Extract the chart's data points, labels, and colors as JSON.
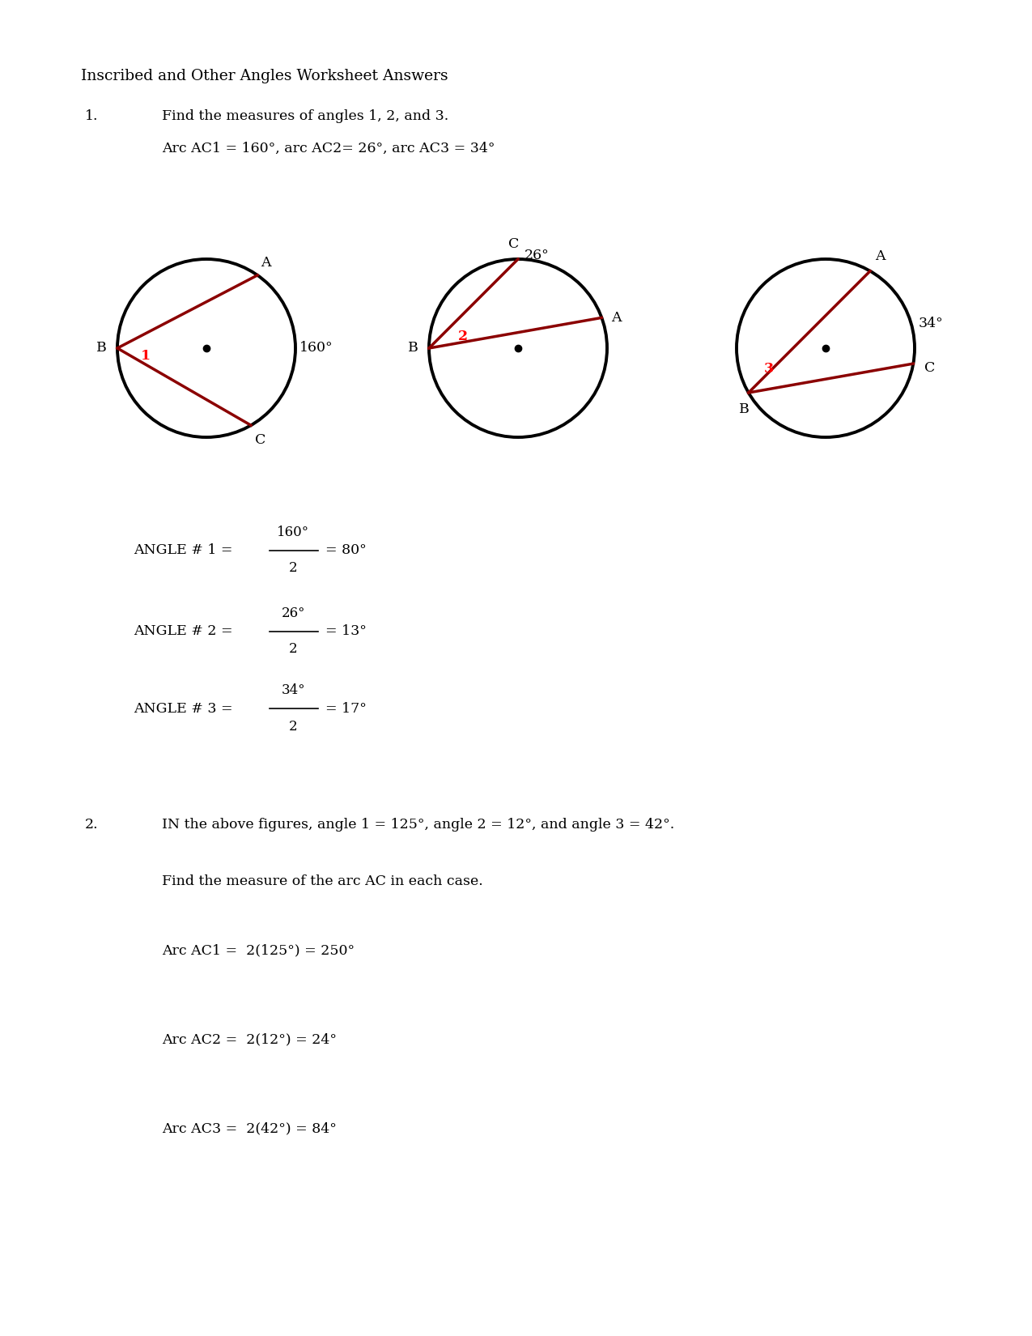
{
  "title": "Inscribed and Other Angles Worksheet Answers",
  "bg_color": "#ffffff",
  "q1_num": "1.",
  "q1_text1": "Find the measures of angles 1, 2, and 3.",
  "q1_text2": "Arc AC1 = 160°, arc AC2= 26°, arc AC3 = 34°",
  "dark_red": "#8B0000",
  "angle1_label": "ANGLE # 1 = ",
  "angle1_num": "160°",
  "angle1_den": "2",
  "angle1_res": "= 80°",
  "angle2_label": "ANGLE # 2 = ",
  "angle2_num": "26°",
  "angle2_den": "2",
  "angle2_res": "= 13°",
  "angle3_label": "ANGLE # 3 = ",
  "angle3_num": "34°",
  "angle3_den": "2",
  "angle3_res": "= 17°",
  "q2_num": "2.",
  "q2_text1": "IN the above figures, angle 1 = 125°, angle 2 = 12°, and angle 3 = 42°.",
  "q2_text2": "Find the measure of the arc AC in each case.",
  "arc_ac1": "Arc AC1 =  2(125°) = 250°",
  "arc_ac2": "Arc AC2 =  2(12°) = 24°",
  "arc_ac3": "Arc AC3 =  2(42°) = 84°"
}
